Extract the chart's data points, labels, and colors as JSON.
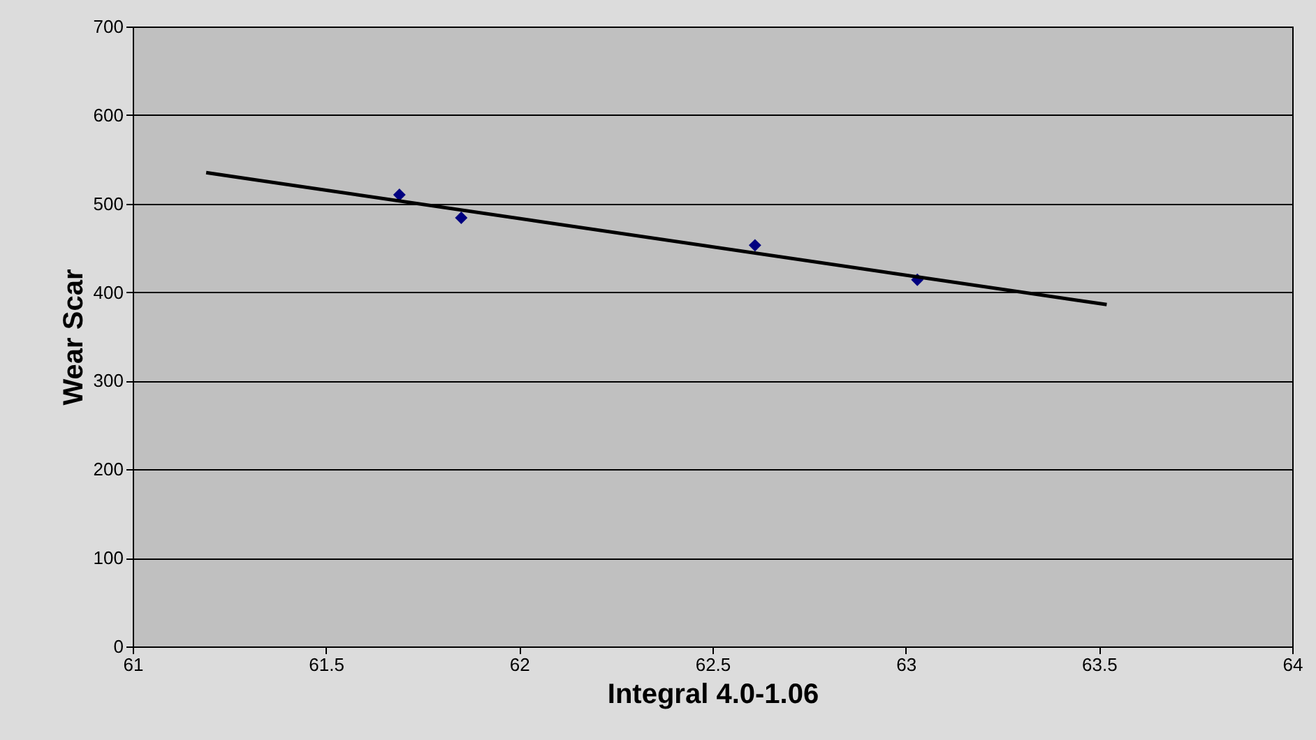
{
  "chart_data": {
    "type": "scatter",
    "xlabel": "Integral 4.0-1.06",
    "ylabel": "Wear Scar",
    "xlim": [
      61,
      64
    ],
    "xticks": [
      61,
      61.5,
      62,
      62.5,
      63,
      63.5,
      64
    ],
    "ylim": [
      0,
      700
    ],
    "yticks": [
      0,
      100,
      200,
      300,
      400,
      500,
      600,
      700
    ],
    "grid": "y",
    "marker": "diamond",
    "series": [
      {
        "color": "#000080",
        "x": [
          61.69,
          61.85,
          62.61,
          63.03
        ],
        "values": [
          510,
          484,
          453,
          414
        ]
      },
      {
        "type": "line",
        "color": "#000000",
        "marker": "none",
        "line_style": "solid",
        "x": [
          61.19,
          63.52
        ],
        "values": [
          535,
          386
        ]
      }
    ]
  }
}
